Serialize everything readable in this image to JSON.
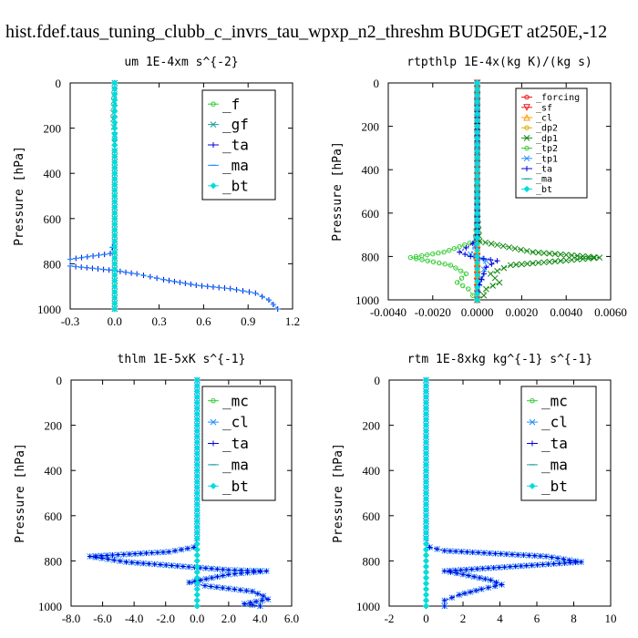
{
  "page_title": "hist.fdef.taus_tuning_clubb_c_invrs_tau_wpxp_n2_threshm  BUDGET at250E,-12",
  "colors": {
    "green": "#33cc33",
    "teal": "#1aa0a0",
    "blue": "#0000dd",
    "cyan": "#00dddd",
    "light_blue": "#1e90ff",
    "red": "#ee1111",
    "orange": "#ff9900",
    "gold": "#ddaa00",
    "dark_green": "#118811"
  },
  "chart_data": [
    {
      "type": "line",
      "title": "um   1E-4xm s^{-2}",
      "xlabel": "",
      "ylabel": "Pressure [hPa]",
      "xlim": [
        -0.3,
        1.2
      ],
      "ylim": [
        1000,
        0
      ],
      "xticks": [
        "-0.3",
        "0.0",
        "0.3",
        "0.6",
        "0.9",
        "1.2"
      ],
      "yticks": [
        "0",
        "200",
        "400",
        "600",
        "800",
        "1000"
      ],
      "legend_position": "top-right",
      "series": [
        {
          "name": "_f",
          "color": "#33cc33",
          "marker": "circle",
          "x": [
            0.0,
            0.0,
            0.0,
            0.0,
            0.0,
            0.0,
            0.0,
            0.0,
            0.0,
            0.0,
            0.0
          ],
          "y": [
            0,
            100,
            200,
            300,
            400,
            500,
            600,
            700,
            800,
            900,
            1000
          ]
        },
        {
          "name": "_gf",
          "color": "#1aa0a0",
          "marker": "x",
          "x": [
            0.0,
            -0.01,
            0.0,
            0.0,
            0.0,
            0.0,
            0.0,
            0.0,
            0.0,
            0.0,
            0.0
          ],
          "y": [
            0,
            160,
            230,
            300,
            400,
            500,
            600,
            700,
            800,
            900,
            1000
          ]
        },
        {
          "name": "_ta",
          "color": "#0000dd",
          "marker": "plus",
          "x": [
            0.0,
            0.0,
            0.0,
            -0.03,
            -0.3,
            -0.3,
            0.0,
            0.15,
            0.33,
            0.55,
            0.78,
            0.95,
            1.04,
            1.1
          ],
          "y": [
            0,
            400,
            700,
            755,
            780,
            810,
            830,
            845,
            870,
            895,
            910,
            930,
            960,
            1000
          ]
        },
        {
          "name": "_ma",
          "color": "#1e90ff",
          "marker": "dash",
          "x": [
            0.0,
            0.0,
            0.0,
            -0.03,
            -0.3,
            -0.3,
            0.0,
            0.15,
            0.33,
            0.55,
            0.78,
            0.95,
            1.04,
            1.1
          ],
          "y": [
            0,
            400,
            700,
            755,
            780,
            810,
            830,
            845,
            870,
            895,
            910,
            930,
            960,
            1000
          ]
        },
        {
          "name": "_bt",
          "color": "#00dddd",
          "marker": "diamond",
          "x": [
            0.0,
            0.0,
            0.0,
            0.0,
            0.0,
            0.0,
            0.0,
            0.0,
            0.0,
            0.0,
            0.0
          ],
          "y": [
            0,
            100,
            200,
            300,
            400,
            500,
            600,
            700,
            800,
            900,
            1000
          ]
        }
      ]
    },
    {
      "type": "line",
      "title": "rtpthlp   1E-4x(kg K)/(kg s)",
      "xlabel": "",
      "ylabel": "Pressure [hPa]",
      "xlim": [
        -0.004,
        0.006
      ],
      "ylim": [
        1000,
        0
      ],
      "xticks": [
        "-0.0040",
        "-0.0020",
        "0.0000",
        "0.0020",
        "0.0040",
        "0.0060"
      ],
      "yticks": [
        "0",
        "200",
        "400",
        "600",
        "800",
        "1000"
      ],
      "legend_position": "top-right",
      "series": [
        {
          "name": "_forcing",
          "color": "#ee1111",
          "marker": "circle",
          "x": [
            0.0,
            0.0,
            0.0,
            0.0,
            0.0,
            0.0,
            0.0,
            0.0,
            0.0,
            0.0,
            0.0
          ],
          "y": [
            0,
            100,
            200,
            300,
            400,
            500,
            600,
            700,
            800,
            900,
            1000
          ]
        },
        {
          "name": "_sf",
          "color": "#ee1111",
          "marker": "triangle-down",
          "x": [
            0.0,
            0.0,
            0.0,
            0.0,
            0.0,
            0.0
          ],
          "y": [
            0,
            200,
            400,
            600,
            800,
            1000
          ]
        },
        {
          "name": "_cl",
          "color": "#ff9900",
          "marker": "triangle-up",
          "x": [
            0.0,
            0.0,
            0.0,
            0.0,
            0.0,
            0.0
          ],
          "y": [
            0,
            200,
            400,
            600,
            800,
            1000
          ]
        },
        {
          "name": "_dp2",
          "color": "#ddaa00",
          "marker": "circle",
          "x": [
            0.0,
            0.0,
            0.0,
            0.0,
            0.0,
            0.0
          ],
          "y": [
            0,
            200,
            400,
            600,
            800,
            1000
          ]
        },
        {
          "name": "_dp1",
          "color": "#118811",
          "marker": "x",
          "x": [
            0.0,
            0.0,
            0.0,
            0.0001,
            0.0025,
            0.0055,
            0.0015,
            0.0006,
            0.001,
            0.0004,
            0.0003,
            0.0
          ],
          "y": [
            0,
            400,
            600,
            730,
            780,
            805,
            840,
            880,
            920,
            950,
            980,
            1000
          ]
        },
        {
          "name": "_tp2",
          "color": "#33cc33",
          "marker": "circle",
          "x": [
            0.0,
            0.0,
            0.0,
            -0.0001,
            -0.0015,
            -0.003,
            -0.0012,
            -0.0005,
            -0.0009,
            -0.0004,
            -0.0002,
            0.0
          ],
          "y": [
            0,
            400,
            600,
            730,
            780,
            805,
            840,
            880,
            920,
            950,
            980,
            1000
          ]
        },
        {
          "name": "_tp1",
          "color": "#1e90ff",
          "marker": "x",
          "x": [
            0.0,
            0.0,
            0.0,
            -0.0001,
            -0.0003,
            0.0004,
            0.0003,
            0.0002,
            0.0,
            0.0
          ],
          "y": [
            0,
            400,
            700,
            750,
            790,
            820,
            860,
            900,
            950,
            1000
          ]
        },
        {
          "name": "_ta",
          "color": "#0000dd",
          "marker": "plus",
          "x": [
            0.0,
            0.0,
            0.0,
            -0.0002,
            -0.0008,
            -0.0003,
            0.0009,
            0.0004,
            0.0003,
            0.0001,
            0.0
          ],
          "y": [
            0,
            400,
            700,
            740,
            780,
            800,
            820,
            850,
            880,
            930,
            1000
          ]
        },
        {
          "name": "_ma",
          "color": "#1aa0a0",
          "marker": "dash",
          "x": [
            0.0,
            0.0,
            0.0,
            0.0,
            0.0,
            0.0
          ],
          "y": [
            0,
            200,
            400,
            600,
            800,
            1000
          ]
        },
        {
          "name": "_bt",
          "color": "#00dddd",
          "marker": "diamond",
          "x": [
            0.0,
            0.0,
            0.0,
            0.0,
            0.0,
            0.0
          ],
          "y": [
            0,
            200,
            400,
            600,
            800,
            1000
          ]
        }
      ]
    },
    {
      "type": "line",
      "title": "thlm   1E-5xK s^{-1}",
      "xlabel": "",
      "ylabel": "Pressure [hPa]",
      "xlim": [
        -8.0,
        6.0
      ],
      "ylim": [
        1000,
        0
      ],
      "xticks": [
        "-8.0",
        "-6.0",
        "-4.0",
        "-2.0",
        "0.0",
        "2.0",
        "4.0",
        "6.0"
      ],
      "yticks": [
        "0",
        "200",
        "400",
        "600",
        "800",
        "1000"
      ],
      "legend_position": "top-right",
      "series": [
        {
          "name": "_mc",
          "color": "#33cc33",
          "marker": "circle",
          "x": [
            0.0,
            0.0,
            0.0,
            0.0,
            0.0,
            0.0,
            0.0,
            0.0,
            0.0,
            0.0,
            0.0
          ],
          "y": [
            0,
            100,
            200,
            300,
            400,
            500,
            600,
            700,
            800,
            900,
            1000
          ]
        },
        {
          "name": "_cl",
          "color": "#1e90ff",
          "marker": "x",
          "x": [
            0.0,
            0.0,
            0.0,
            -0.2,
            -1.8,
            -6.8,
            -4.5,
            2.0,
            4.4,
            2.0,
            -0.5,
            0.5,
            3.5,
            4.2,
            4.5,
            3.0,
            4.0
          ],
          "y": [
            0,
            400,
            700,
            740,
            760,
            780,
            805,
            840,
            845,
            860,
            895,
            910,
            935,
            955,
            970,
            990,
            1000
          ]
        },
        {
          "name": "_ta",
          "color": "#0000dd",
          "marker": "plus",
          "x": [
            0.0,
            0.0,
            0.0,
            -0.2,
            -1.8,
            -6.8,
            -4.5,
            2.0,
            4.4,
            2.0,
            -0.5,
            0.5,
            3.5,
            4.2,
            4.5,
            3.0,
            4.0
          ],
          "y": [
            0,
            400,
            700,
            740,
            760,
            780,
            805,
            840,
            845,
            860,
            895,
            910,
            935,
            955,
            970,
            990,
            1000
          ]
        },
        {
          "name": "_ma",
          "color": "#1aa0a0",
          "marker": "dash",
          "x": [
            0.0,
            0.0,
            0.0,
            0.0,
            0.0,
            0.0,
            0.0,
            0.0,
            0.0,
            0.0,
            0.0
          ],
          "y": [
            0,
            100,
            200,
            300,
            400,
            500,
            600,
            700,
            800,
            900,
            1000
          ]
        },
        {
          "name": "_bt",
          "color": "#00dddd",
          "marker": "diamond",
          "x": [
            0.0,
            0.0,
            0.0,
            0.0,
            0.0,
            0.0,
            0.0,
            0.0,
            0.0,
            0.0,
            0.0
          ],
          "y": [
            0,
            100,
            200,
            300,
            400,
            500,
            600,
            700,
            800,
            900,
            1000
          ]
        }
      ]
    },
    {
      "type": "line",
      "title": "rtm   1E-8xkg kg^{-1} s^{-1}",
      "xlabel": "",
      "ylabel": "Pressure [hPa]",
      "xlim": [
        -2,
        10
      ],
      "ylim": [
        1000,
        0
      ],
      "xticks": [
        "-2",
        "0",
        "2",
        "4",
        "6",
        "8",
        "10"
      ],
      "yticks": [
        "0",
        "200",
        "400",
        "600",
        "800",
        "1000"
      ],
      "legend_position": "top-right",
      "series": [
        {
          "name": "_mc",
          "color": "#33cc33",
          "marker": "circle",
          "x": [
            0.0,
            0.0,
            0.0,
            0.0,
            0.0,
            0.0,
            0.0,
            0.0,
            0.0,
            0.0,
            0.0
          ],
          "y": [
            0,
            100,
            200,
            300,
            400,
            500,
            600,
            700,
            800,
            900,
            1000
          ]
        },
        {
          "name": "_cl",
          "color": "#1e90ff",
          "marker": "x",
          "x": [
            0.0,
            0.0,
            0.0,
            0.2,
            1.0,
            6.5,
            8.4,
            1.0,
            2.0,
            3.5,
            4.1,
            3.0,
            1.8,
            1.0,
            1.0
          ],
          "y": [
            0,
            400,
            700,
            740,
            755,
            780,
            805,
            845,
            860,
            885,
            905,
            925,
            950,
            975,
            1000
          ]
        },
        {
          "name": "_ta",
          "color": "#0000dd",
          "marker": "plus",
          "x": [
            0.0,
            0.0,
            0.0,
            0.2,
            1.0,
            6.5,
            8.4,
            1.0,
            2.0,
            3.5,
            4.1,
            3.0,
            1.8,
            1.0,
            1.0
          ],
          "y": [
            0,
            400,
            700,
            740,
            755,
            780,
            805,
            845,
            860,
            885,
            905,
            925,
            950,
            975,
            1000
          ]
        },
        {
          "name": "_ma",
          "color": "#1aa0a0",
          "marker": "dash",
          "x": [
            0.0,
            0.0,
            0.0,
            0.0,
            0.0,
            0.0,
            0.0,
            0.0,
            0.0,
            0.0,
            0.0
          ],
          "y": [
            0,
            100,
            200,
            300,
            400,
            500,
            600,
            700,
            800,
            900,
            1000
          ]
        },
        {
          "name": "_bt",
          "color": "#00dddd",
          "marker": "diamond",
          "x": [
            0.0,
            0.0,
            0.0,
            0.0,
            0.0,
            0.0,
            0.0,
            0.0,
            0.0,
            0.0,
            0.0
          ],
          "y": [
            0,
            100,
            200,
            300,
            400,
            500,
            600,
            700,
            800,
            900,
            1000
          ]
        }
      ]
    }
  ]
}
